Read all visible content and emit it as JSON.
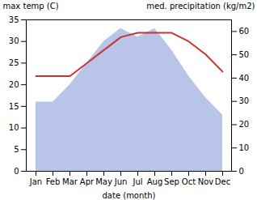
{
  "chart_data": {
    "type": "line",
    "xlabel": "date (month)",
    "ylabel": "max temp (C)",
    "y2label": "med. precipitation (kg/m2)",
    "categories": [
      "Jan",
      "Feb",
      "Mar",
      "Apr",
      "May",
      "Jun",
      "Jul",
      "Aug",
      "Sep",
      "Oct",
      "Nov",
      "Dec"
    ],
    "series": [
      {
        "type": "area",
        "color": "#b8c4e8",
        "values": [
          16,
          16,
          20,
          25,
          30,
          33,
          31,
          33,
          28,
          22,
          17,
          13
        ]
      },
      {
        "type": "line",
        "color": "#cc3333",
        "values": [
          22,
          22,
          22,
          25,
          28,
          31,
          32,
          32,
          32,
          30,
          27,
          23
        ]
      }
    ],
    "ylim": [
      0,
      35
    ],
    "yticks": [
      0,
      5,
      10,
      15,
      20,
      25,
      30,
      35
    ],
    "y2lim": [
      0,
      65
    ],
    "y2ticks": [
      0,
      10,
      20,
      30,
      40,
      50,
      60
    ],
    "grid": false
  }
}
